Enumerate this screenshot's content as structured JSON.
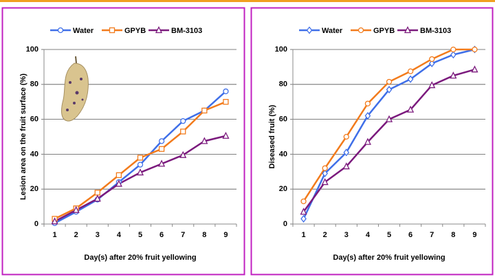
{
  "chart_data": [
    {
      "type": "line",
      "x_label": "Day(s) after 20% fruit yellowing",
      "y_label": "Lesion area on the fruit surface (%)",
      "categories": [
        1,
        2,
        3,
        4,
        5,
        6,
        7,
        8,
        9
      ],
      "ylim": [
        0,
        100
      ],
      "yticks": [
        0,
        20,
        40,
        60,
        80,
        100
      ],
      "grid": true,
      "legend": "top",
      "series": [
        {
          "name": "Water",
          "color": "#3f6fe8",
          "marker": "circle",
          "values": [
            0.5,
            7,
            14,
            24,
            34,
            47.5,
            59,
            65,
            76
          ]
        },
        {
          "name": "GPYB",
          "color": "#f27b1c",
          "marker": "square",
          "values": [
            3,
            9,
            18,
            28,
            38,
            43,
            53,
            65,
            70
          ]
        },
        {
          "name": "BM-3103",
          "color": "#7b1a7d",
          "marker": "triangle",
          "values": [
            1.5,
            8,
            14.5,
            23,
            29.5,
            34.5,
            39.5,
            47.5,
            50.5
          ]
        }
      ]
    },
    {
      "type": "line",
      "x_label": "Day(s) after 20% fruit yellowing",
      "y_label": "Diseased fruit (%)",
      "categories": [
        1,
        2,
        3,
        4,
        5,
        6,
        7,
        8,
        9
      ],
      "ylim": [
        0,
        100
      ],
      "yticks": [
        0,
        20,
        40,
        60,
        80,
        100
      ],
      "grid": true,
      "legend": "top",
      "series": [
        {
          "name": "Water",
          "color": "#3f6fe8",
          "marker": "diamond",
          "values": [
            3,
            29,
            41,
            62,
            77,
            83,
            92,
            97,
            100
          ]
        },
        {
          "name": "GPYB",
          "color": "#f27b1c",
          "marker": "circle",
          "values": [
            13,
            32,
            50,
            69,
            81.5,
            87.5,
            94.5,
            100,
            100
          ]
        },
        {
          "name": "BM-3103",
          "color": "#7b1a7d",
          "marker": "triangle",
          "values": [
            7,
            24,
            33,
            47,
            60,
            65.5,
            79.5,
            85,
            88.5
          ]
        }
      ]
    }
  ]
}
